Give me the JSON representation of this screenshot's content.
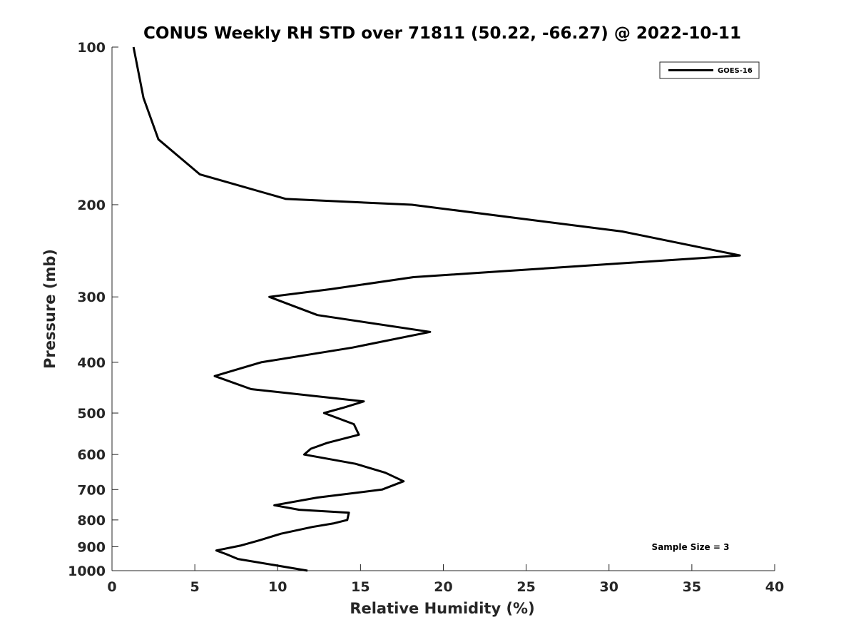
{
  "chart_data": {
    "type": "line",
    "title": "CONUS Weekly RH STD over 71811 (50.22, -66.27) @ 2022-10-11",
    "xlabel": "Relative Humidity (%)",
    "ylabel": "Pressure (mb)",
    "xlim": [
      0,
      40
    ],
    "ylim": [
      100,
      1000
    ],
    "y_scale": "log",
    "y_reversed": true,
    "grid": false,
    "x_ticks": [
      0,
      5,
      10,
      15,
      20,
      25,
      30,
      35,
      40
    ],
    "y_ticks": [
      100,
      200,
      300,
      400,
      500,
      600,
      700,
      800,
      900,
      1000
    ],
    "legend": {
      "position": "top-right",
      "entries": [
        "GOES-16"
      ]
    },
    "annotation": "Sample Size = 3",
    "series": [
      {
        "name": "GOES-16",
        "color": "#000000",
        "points": [
          [
            1.3,
            100
          ],
          [
            1.9,
            125
          ],
          [
            2.8,
            150
          ],
          [
            5.3,
            175
          ],
          [
            10.5,
            195
          ],
          [
            18.1,
            200
          ],
          [
            30.8,
            225
          ],
          [
            37.9,
            250
          ],
          [
            18.2,
            275
          ],
          [
            13.2,
            290
          ],
          [
            9.5,
            300
          ],
          [
            12.4,
            325
          ],
          [
            19.2,
            350
          ],
          [
            14.5,
            375
          ],
          [
            9.0,
            400
          ],
          [
            6.2,
            425
          ],
          [
            8.4,
            450
          ],
          [
            15.2,
            475
          ],
          [
            14.0,
            488
          ],
          [
            12.8,
            500
          ],
          [
            14.6,
            525
          ],
          [
            14.9,
            550
          ],
          [
            13.0,
            570
          ],
          [
            12.0,
            585
          ],
          [
            11.6,
            600
          ],
          [
            14.7,
            625
          ],
          [
            16.5,
            650
          ],
          [
            17.6,
            675
          ],
          [
            16.3,
            700
          ],
          [
            12.4,
            725
          ],
          [
            9.8,
            750
          ],
          [
            11.3,
            765
          ],
          [
            14.3,
            775
          ],
          [
            14.2,
            800
          ],
          [
            13.4,
            812
          ],
          [
            12.1,
            825
          ],
          [
            10.2,
            850
          ],
          [
            8.9,
            875
          ],
          [
            7.8,
            895
          ],
          [
            6.3,
            915
          ],
          [
            6.9,
            930
          ],
          [
            7.6,
            950
          ],
          [
            11.8,
            1000
          ]
        ]
      }
    ]
  }
}
